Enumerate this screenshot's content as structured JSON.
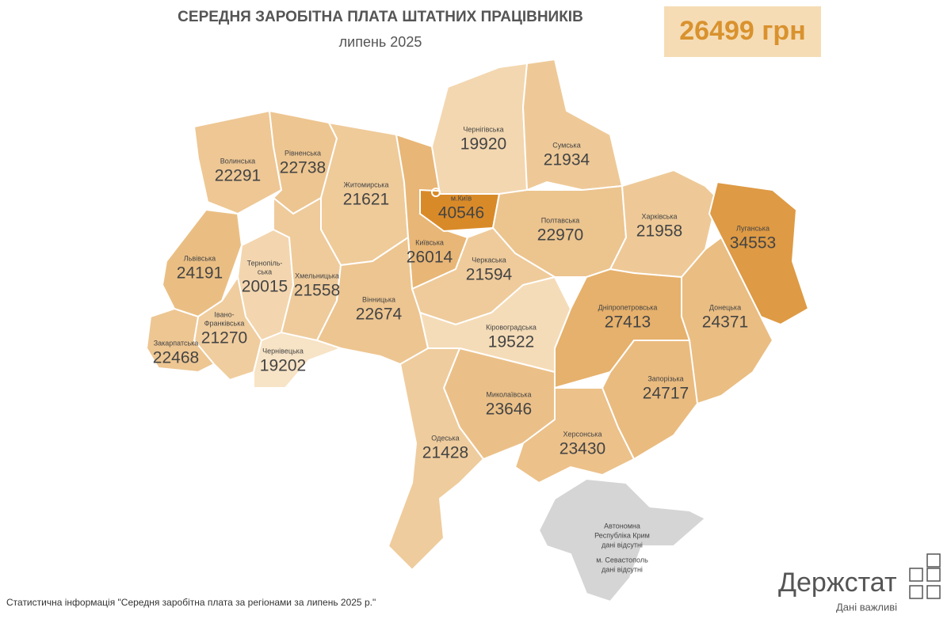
{
  "header": {
    "title": "СЕРЕДНЯ ЗАРОБІТНА ПЛАТА ШТАТНИХ ПРАЦІВНИКІВ",
    "subtitle": "липень 2025",
    "average": "26499 грн"
  },
  "regions": [
    {
      "name": [
        "Волинська"
      ],
      "value": 22291
    },
    {
      "name": [
        "Рівненська"
      ],
      "value": 22738
    },
    {
      "name": [
        "Житомирська"
      ],
      "value": 21621
    },
    {
      "name": [
        "Київська"
      ],
      "value": 26014
    },
    {
      "name": [
        "м.Київ"
      ],
      "value": 40546
    },
    {
      "name": [
        "Чернігівська"
      ],
      "value": 19920
    },
    {
      "name": [
        "Сумська"
      ],
      "value": 21934
    },
    {
      "name": [
        "Полтавська"
      ],
      "value": 22970
    },
    {
      "name": [
        "Харківська"
      ],
      "value": 21958
    },
    {
      "name": [
        "Луганська"
      ],
      "value": 34553
    },
    {
      "name": [
        "Донецька"
      ],
      "value": 24371
    },
    {
      "name": [
        "Дніпропетровська"
      ],
      "value": 27413
    },
    {
      "name": [
        "Запорізька"
      ],
      "value": 24717
    },
    {
      "name": [
        "Черкаська"
      ],
      "value": 21594
    },
    {
      "name": [
        "Кіровоградська"
      ],
      "value": 19522
    },
    {
      "name": [
        "Миколаївська"
      ],
      "value": 23646
    },
    {
      "name": [
        "Херсонська"
      ],
      "value": 23430
    },
    {
      "name": [
        "Одеська"
      ],
      "value": 21428
    },
    {
      "name": [
        "Львівська"
      ],
      "value": 24191
    },
    {
      "name": [
        "Тернопіль-",
        "ська"
      ],
      "value": 20015
    },
    {
      "name": [
        "Хмельницька"
      ],
      "value": 21558
    },
    {
      "name": [
        "Вінницька"
      ],
      "value": 22674
    },
    {
      "name": [
        "Івано-",
        "Франківська"
      ],
      "value": 21270
    },
    {
      "name": [
        "Закарпатська"
      ],
      "value": 22468
    },
    {
      "name": [
        "Чернівецька"
      ],
      "value": 19202
    }
  ],
  "crimea": [
    "Автономна",
    "Республіка Крим",
    "дані відсутні",
    "м. Севастополь",
    "дані відсутні"
  ],
  "footer": {
    "source": "Статистична інформація \"Середня заробітна плата за регіонами за липень 2025 р.\"",
    "logo": "Держстат",
    "slogan": "Дані важливі"
  }
}
